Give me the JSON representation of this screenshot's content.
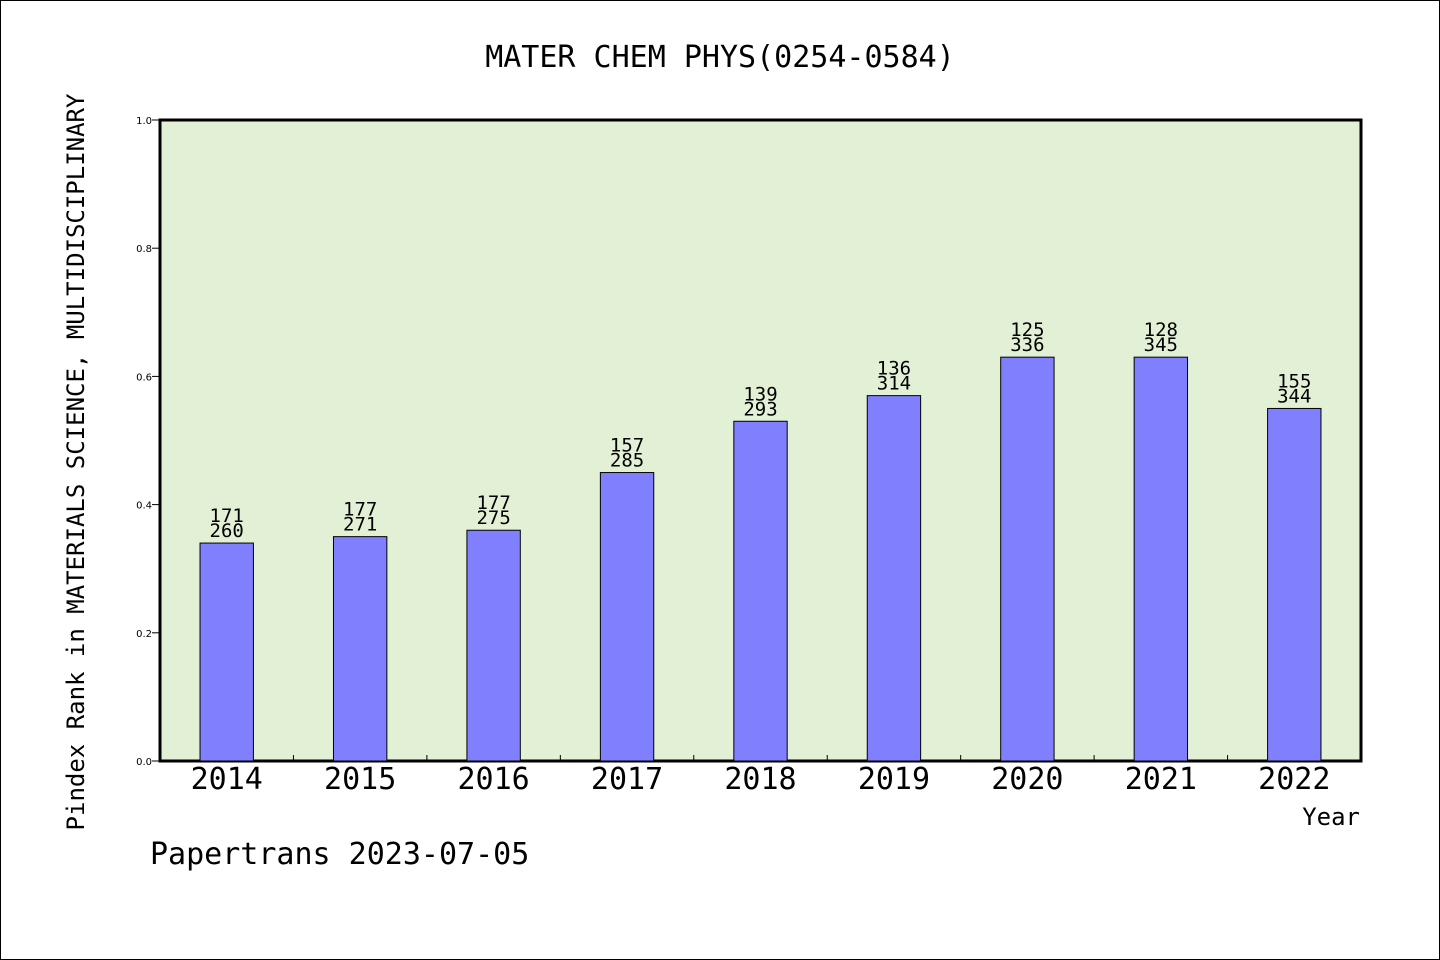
{
  "chart_data": {
    "type": "bar",
    "title": "MATER CHEM PHYS(0254-0584)",
    "ylabel": "Pindex Rank in MATERIALS SCIENCE, MULTIDISCIPLINARY",
    "xlabel": "Year",
    "footer": "Papertrans 2023-07-05",
    "ylim": [
      0,
      1.0
    ],
    "yticks": [
      "0.0",
      "0.2",
      "0.4",
      "0.6",
      "0.8",
      "1.0"
    ],
    "categories": [
      "2014",
      "2015",
      "2016",
      "2017",
      "2018",
      "2019",
      "2020",
      "2021",
      "2022"
    ],
    "values": [
      0.34,
      0.35,
      0.36,
      0.45,
      0.53,
      0.57,
      0.63,
      0.63,
      0.55
    ],
    "rank_labels": [
      "171",
      "177",
      "177",
      "157",
      "139",
      "136",
      "125",
      "128",
      "155"
    ],
    "total_labels": [
      "260",
      "271",
      "275",
      "285",
      "293",
      "314",
      "336",
      "345",
      "344"
    ],
    "grid": false,
    "colors": {
      "plot_background": "#e2f0d6",
      "bar_fill": "#8080ff",
      "bar_stroke": "#000000"
    }
  }
}
